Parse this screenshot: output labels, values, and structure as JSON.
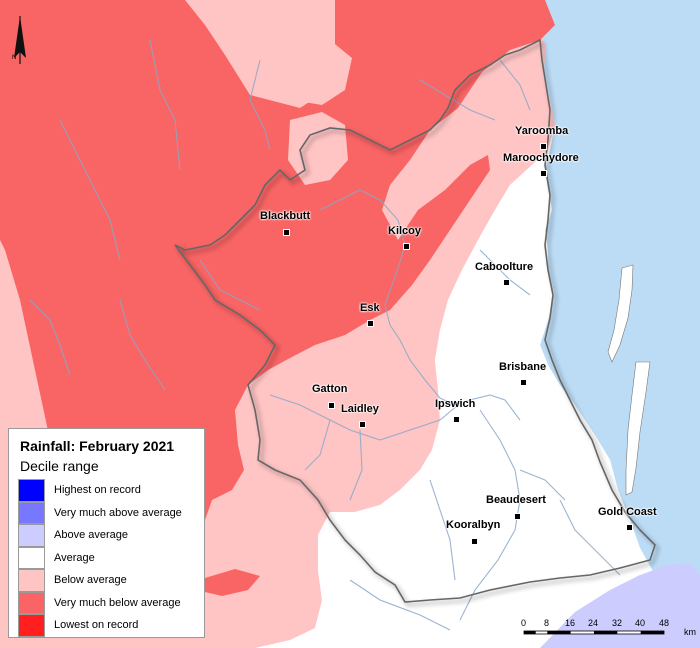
{
  "legend": {
    "title": "Rainfall: February 2021",
    "subtitle": "Decile range",
    "items": [
      {
        "label": "Highest on record",
        "color": "#0000ff"
      },
      {
        "label": "Very much above average",
        "color": "#7777ff"
      },
      {
        "label": "Above average",
        "color": "#ccccff"
      },
      {
        "label": "Average",
        "color": "#ffffff"
      },
      {
        "label": "Below average",
        "color": "#ffc4c4"
      },
      {
        "label": "Very much below average",
        "color": "#f96464"
      },
      {
        "label": "Lowest on record",
        "color": "#ff1f1f"
      }
    ]
  },
  "places": {
    "yaroomba": "Yaroomba",
    "maroochydore": "Maroochydore",
    "blackbutt": "Blackbutt",
    "kilcoy": "Kilcoy",
    "caboolture": "Caboolture",
    "esk": "Esk",
    "brisbane": "Brisbane",
    "gatton": "Gatton",
    "laidley": "Laidley",
    "ipswich": "Ipswich",
    "beaudesert": "Beaudesert",
    "kooralbyn": "Kooralbyn",
    "gold_coast": "Gold Coast"
  },
  "north_arrow": {
    "label": "N",
    "icon": "north-arrow-icon"
  },
  "scale_bar": {
    "ticks": [
      "0",
      "8",
      "16",
      "24",
      "32",
      "40",
      "48"
    ],
    "unit": "km"
  },
  "colors": {
    "ocean": "#bcdcf6",
    "region_outline": "#666666",
    "rivers": "#8aa8c8"
  }
}
